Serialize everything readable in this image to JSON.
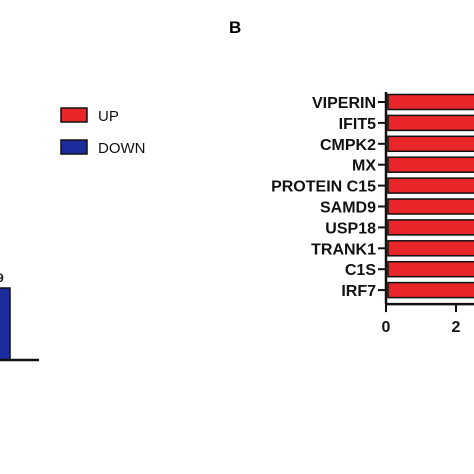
{
  "panel_label": "B",
  "legend": {
    "items": [
      {
        "label": "UP",
        "color": "#e8262a"
      },
      {
        "label": "DOWN",
        "color": "#1c2c9c"
      }
    ]
  },
  "chart_data": [
    {
      "type": "bar",
      "panel": "A (partially visible)",
      "categories": [
        "DOWN"
      ],
      "values": [
        null
      ],
      "colors": [
        "#1c2c9c"
      ],
      "value_label_fragment": "9"
    },
    {
      "type": "bar",
      "orientation": "horizontal",
      "panel": "B",
      "categories": [
        "VIPERIN",
        "IFIT5",
        "CMPK2",
        "MX",
        "PROTEIN C15",
        "SAMD9",
        "USP18",
        "TRANK1",
        "C1S",
        "IRF7"
      ],
      "values": [
        3.5,
        3.5,
        3.5,
        3.5,
        3.5,
        3.5,
        3.5,
        3.5,
        3.5,
        3.5
      ],
      "color": "#e8262a",
      "xticks": [
        0,
        2
      ],
      "xlim": [
        0,
        2.75
      ],
      "title": "",
      "xlabel": "",
      "ylabel": ""
    }
  ]
}
